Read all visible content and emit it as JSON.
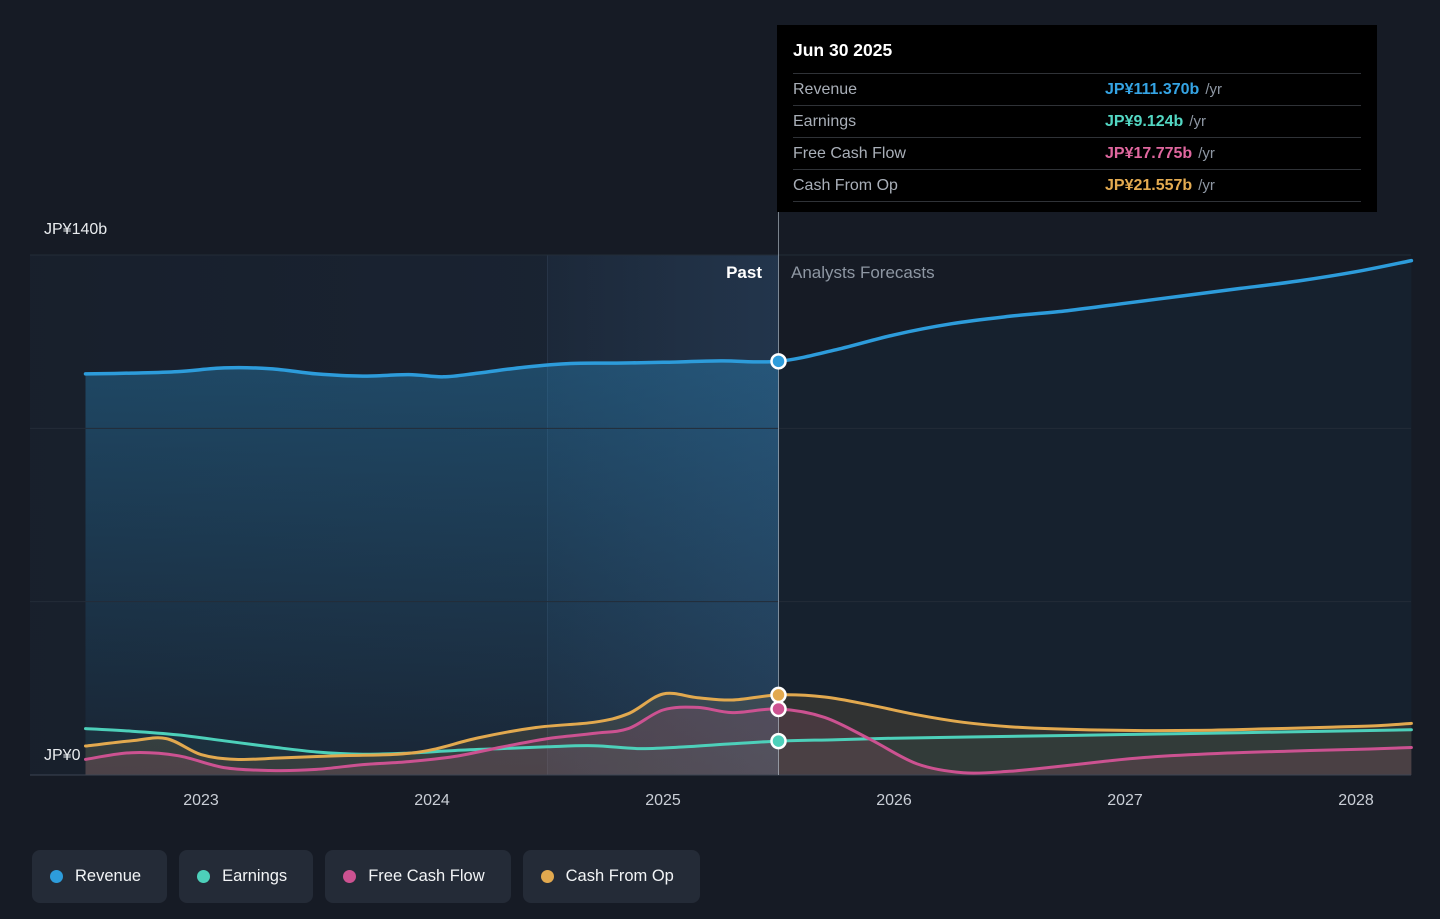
{
  "tooltip": {
    "date": "Jun 30 2025",
    "rows": [
      {
        "id": "revenue",
        "label": "Revenue",
        "value": "JP¥111.370b",
        "suffix": "/yr",
        "color": "#35A4E4"
      },
      {
        "id": "earnings",
        "label": "Earnings",
        "value": "JP¥9.124b",
        "suffix": "/yr",
        "color": "#53D7C3"
      },
      {
        "id": "free-cash-flow",
        "label": "Free Cash Flow",
        "value": "JP¥17.775b",
        "suffix": "/yr",
        "color": "#E0679F"
      },
      {
        "id": "cash-from-op",
        "label": "Cash From Op",
        "value": "JP¥21.557b",
        "suffix": "/yr",
        "color": "#E4AB51"
      }
    ]
  },
  "axis": {
    "y_max_label": "JP¥140b",
    "y_zero_label": "JP¥0",
    "x_labels": [
      "2023",
      "2024",
      "2025",
      "2026",
      "2027",
      "2028"
    ]
  },
  "annotations": {
    "past": "Past",
    "forecast": "Analysts Forecasts"
  },
  "legend": [
    {
      "id": "revenue",
      "label": "Revenue"
    },
    {
      "id": "earnings",
      "label": "Earnings"
    },
    {
      "id": "free-cash-flow",
      "label": "Free Cash Flow"
    },
    {
      "id": "cash-from-op",
      "label": "Cash From Op"
    }
  ],
  "colors": {
    "background": "#161B25",
    "grid": "#232C38",
    "zero_line": "#3C4553",
    "divider": "rgba(205,216,228,0.55)"
  },
  "chart_data": {
    "type": "line",
    "unit": "JP¥ billions per year",
    "x_unit": "year",
    "x_range": [
      2022.5,
      2028.24
    ],
    "ylim": [
      0,
      140
    ],
    "y_gridlines": [
      0,
      46.67,
      93.33,
      140
    ],
    "divider_x": 2025.5,
    "divider_date": "Jun 30 2025",
    "highlight_band": [
      2024.5,
      2025.5
    ],
    "legend_position": "bottom-left",
    "marker_values": {
      "revenue": 111.37,
      "earnings": 9.124,
      "free-cash-flow": 17.775,
      "cash-from-op": 21.557
    },
    "series": [
      {
        "id": "revenue",
        "name": "Revenue",
        "color": "#2D9CDB",
        "points": [
          [
            2022.5,
            108
          ],
          [
            2022.7,
            108.2
          ],
          [
            2022.9,
            108.6
          ],
          [
            2023.1,
            109.6
          ],
          [
            2023.3,
            109.4
          ],
          [
            2023.5,
            108.0
          ],
          [
            2023.7,
            107.4
          ],
          [
            2023.9,
            107.8
          ],
          [
            2024.05,
            107.2
          ],
          [
            2024.2,
            108.2
          ],
          [
            2024.4,
            109.8
          ],
          [
            2024.6,
            110.8
          ],
          [
            2024.8,
            110.9
          ],
          [
            2025.0,
            111.1
          ],
          [
            2025.25,
            111.5
          ],
          [
            2025.5,
            111.37
          ],
          [
            2025.75,
            114.5
          ],
          [
            2026.0,
            118.5
          ],
          [
            2026.25,
            121.5
          ],
          [
            2026.5,
            123.5
          ],
          [
            2026.75,
            125.0
          ],
          [
            2027.0,
            127.0
          ],
          [
            2027.25,
            129.0
          ],
          [
            2027.5,
            131.0
          ],
          [
            2027.75,
            133.0
          ],
          [
            2028.0,
            135.5
          ],
          [
            2028.24,
            138.5
          ]
        ]
      },
      {
        "id": "earnings",
        "name": "Earnings",
        "color": "#4DD0BA",
        "points": [
          [
            2022.5,
            12.5
          ],
          [
            2022.7,
            11.8
          ],
          [
            2022.9,
            10.8
          ],
          [
            2023.1,
            9.2
          ],
          [
            2023.3,
            7.6
          ],
          [
            2023.5,
            6.2
          ],
          [
            2023.7,
            5.6
          ],
          [
            2023.9,
            5.9
          ],
          [
            2024.1,
            6.6
          ],
          [
            2024.3,
            7.1
          ],
          [
            2024.5,
            7.6
          ],
          [
            2024.7,
            7.9
          ],
          [
            2024.9,
            7.1
          ],
          [
            2025.1,
            7.6
          ],
          [
            2025.3,
            8.4
          ],
          [
            2025.5,
            9.124
          ],
          [
            2025.75,
            9.5
          ],
          [
            2026.0,
            9.9
          ],
          [
            2026.5,
            10.4
          ],
          [
            2027.0,
            10.9
          ],
          [
            2027.5,
            11.4
          ],
          [
            2028.0,
            11.9
          ],
          [
            2028.24,
            12.2
          ]
        ]
      },
      {
        "id": "free-cash-flow",
        "name": "Free Cash Flow",
        "color": "#CC5291",
        "points": [
          [
            2022.5,
            4.2
          ],
          [
            2022.7,
            6.0
          ],
          [
            2022.9,
            5.2
          ],
          [
            2023.1,
            2.0
          ],
          [
            2023.3,
            1.2
          ],
          [
            2023.5,
            1.5
          ],
          [
            2023.7,
            2.8
          ],
          [
            2023.9,
            3.6
          ],
          [
            2024.1,
            5.0
          ],
          [
            2024.3,
            7.5
          ],
          [
            2024.5,
            9.8
          ],
          [
            2024.7,
            11.2
          ],
          [
            2024.85,
            12.5
          ],
          [
            2025.0,
            17.5
          ],
          [
            2025.15,
            18.2
          ],
          [
            2025.3,
            16.8
          ],
          [
            2025.5,
            17.775
          ],
          [
            2025.7,
            15.5
          ],
          [
            2025.9,
            9.5
          ],
          [
            2026.1,
            3.0
          ],
          [
            2026.3,
            0.6
          ],
          [
            2026.5,
            1.0
          ],
          [
            2026.7,
            2.2
          ],
          [
            2026.9,
            3.6
          ],
          [
            2027.1,
            4.8
          ],
          [
            2027.4,
            5.8
          ],
          [
            2027.7,
            6.4
          ],
          [
            2028.0,
            6.9
          ],
          [
            2028.24,
            7.4
          ]
        ]
      },
      {
        "id": "cash-from-op",
        "name": "Cash From Op",
        "color": "#E2A94F",
        "points": [
          [
            2022.5,
            7.8
          ],
          [
            2022.7,
            9.2
          ],
          [
            2022.85,
            9.8
          ],
          [
            2023.0,
            5.5
          ],
          [
            2023.15,
            4.2
          ],
          [
            2023.35,
            4.6
          ],
          [
            2023.6,
            5.2
          ],
          [
            2023.85,
            5.6
          ],
          [
            2024.0,
            6.8
          ],
          [
            2024.2,
            10.0
          ],
          [
            2024.45,
            12.8
          ],
          [
            2024.7,
            14.2
          ],
          [
            2024.85,
            16.5
          ],
          [
            2025.0,
            21.8
          ],
          [
            2025.15,
            20.8
          ],
          [
            2025.3,
            20.2
          ],
          [
            2025.5,
            21.557
          ],
          [
            2025.7,
            21.0
          ],
          [
            2025.9,
            18.8
          ],
          [
            2026.1,
            16.2
          ],
          [
            2026.3,
            14.2
          ],
          [
            2026.5,
            13.0
          ],
          [
            2026.7,
            12.4
          ],
          [
            2027.0,
            12.0
          ],
          [
            2027.3,
            12.0
          ],
          [
            2027.6,
            12.4
          ],
          [
            2027.9,
            12.9
          ],
          [
            2028.1,
            13.3
          ],
          [
            2028.24,
            13.9
          ]
        ]
      }
    ]
  }
}
